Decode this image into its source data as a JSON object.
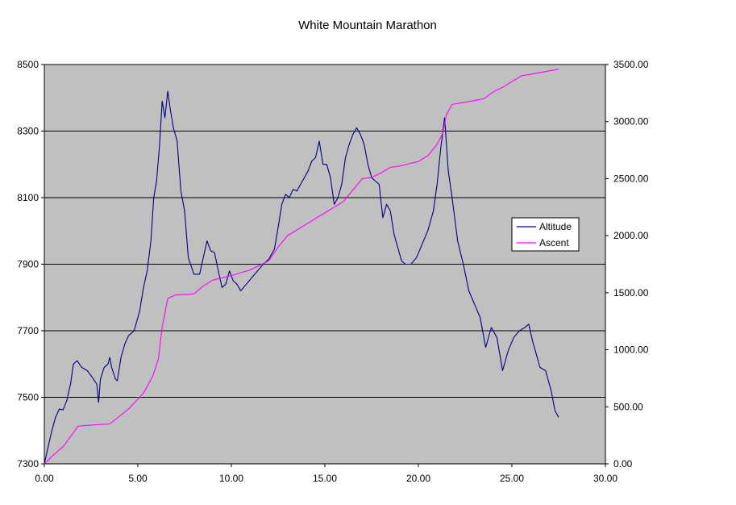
{
  "colors": {
    "plot_background": "#c0c0c0",
    "altitude": "#000080",
    "ascent": "#ff00ff",
    "gridline": "#000000"
  },
  "chart_data": {
    "type": "line",
    "title": "White Mountain Marathon",
    "xlabel": "",
    "ylabel": "",
    "y2label": "",
    "xlim": [
      0,
      30
    ],
    "ylim": [
      7300,
      8500
    ],
    "y2lim": [
      0,
      3500
    ],
    "x_ticks": [
      "0.00",
      "5.00",
      "10.00",
      "15.00",
      "20.00",
      "25.00",
      "30.00"
    ],
    "y_ticks": [
      "7300",
      "7500",
      "7700",
      "7900",
      "8100",
      "8300",
      "8500"
    ],
    "y2_ticks": [
      "0.00",
      "500.00",
      "1000.00",
      "1500.00",
      "2000.00",
      "2500.00",
      "3000.00",
      "3500.00"
    ],
    "grid": "horizontal major lines on left axis",
    "legend_position": "right",
    "series": [
      {
        "name": "Altitude",
        "axis": "left",
        "points": [
          [
            0,
            7300
          ],
          [
            0.2,
            7350
          ],
          [
            0.4,
            7400
          ],
          [
            0.6,
            7440
          ],
          [
            0.8,
            7465
          ],
          [
            1,
            7462
          ],
          [
            1.2,
            7490
          ],
          [
            1.4,
            7540
          ],
          [
            1.55,
            7600
          ],
          [
            1.75,
            7610
          ],
          [
            2,
            7590
          ],
          [
            2.3,
            7580
          ],
          [
            2.5,
            7565
          ],
          [
            2.8,
            7540
          ],
          [
            2.9,
            7485
          ],
          [
            3,
            7555
          ],
          [
            3.2,
            7590
          ],
          [
            3.4,
            7600
          ],
          [
            3.5,
            7620
          ],
          [
            3.6,
            7590
          ],
          [
            3.8,
            7555
          ],
          [
            3.9,
            7550
          ],
          [
            4.1,
            7620
          ],
          [
            4.3,
            7660
          ],
          [
            4.5,
            7685
          ],
          [
            4.8,
            7700
          ],
          [
            5.1,
            7760
          ],
          [
            5.3,
            7830
          ],
          [
            5.5,
            7880
          ],
          [
            5.7,
            7970
          ],
          [
            5.85,
            8100
          ],
          [
            6,
            8150
          ],
          [
            6.15,
            8250
          ],
          [
            6.3,
            8390
          ],
          [
            6.45,
            8340
          ],
          [
            6.6,
            8420
          ],
          [
            6.75,
            8360
          ],
          [
            6.9,
            8310
          ],
          [
            7.1,
            8270
          ],
          [
            7.3,
            8120
          ],
          [
            7.5,
            8060
          ],
          [
            7.7,
            7920
          ],
          [
            8,
            7870
          ],
          [
            8.3,
            7870
          ],
          [
            8.5,
            7920
          ],
          [
            8.7,
            7970
          ],
          [
            8.9,
            7940
          ],
          [
            9.1,
            7935
          ],
          [
            9.3,
            7880
          ],
          [
            9.5,
            7830
          ],
          [
            9.7,
            7840
          ],
          [
            9.9,
            7880
          ],
          [
            10.1,
            7850
          ],
          [
            10.3,
            7840
          ],
          [
            10.5,
            7820
          ],
          [
            10.8,
            7840
          ],
          [
            11.1,
            7860
          ],
          [
            11.4,
            7880
          ],
          [
            11.7,
            7900
          ],
          [
            12,
            7915
          ],
          [
            12.3,
            7945
          ],
          [
            12.5,
            8010
          ],
          [
            12.7,
            8080
          ],
          [
            12.9,
            8110
          ],
          [
            13.1,
            8100
          ],
          [
            13.3,
            8125
          ],
          [
            13.5,
            8120
          ],
          [
            13.7,
            8140
          ],
          [
            13.9,
            8160
          ],
          [
            14.1,
            8180
          ],
          [
            14.3,
            8210
          ],
          [
            14.5,
            8220
          ],
          [
            14.7,
            8270
          ],
          [
            14.9,
            8200
          ],
          [
            15.1,
            8200
          ],
          [
            15.3,
            8160
          ],
          [
            15.5,
            8080
          ],
          [
            15.7,
            8100
          ],
          [
            15.9,
            8140
          ],
          [
            16.1,
            8220
          ],
          [
            16.3,
            8260
          ],
          [
            16.5,
            8290
          ],
          [
            16.7,
            8310
          ],
          [
            16.9,
            8290
          ],
          [
            17.1,
            8260
          ],
          [
            17.3,
            8200
          ],
          [
            17.5,
            8160
          ],
          [
            17.7,
            8150
          ],
          [
            17.9,
            8140
          ],
          [
            18.1,
            8040
          ],
          [
            18.3,
            8080
          ],
          [
            18.5,
            8060
          ],
          [
            18.7,
            7990
          ],
          [
            18.9,
            7950
          ],
          [
            19.1,
            7910
          ],
          [
            19.3,
            7900
          ],
          [
            19.6,
            7900
          ],
          [
            19.9,
            7920
          ],
          [
            20.2,
            7960
          ],
          [
            20.5,
            8000
          ],
          [
            20.8,
            8060
          ],
          [
            21,
            8140
          ],
          [
            21.2,
            8250
          ],
          [
            21.4,
            8340
          ],
          [
            21.6,
            8180
          ],
          [
            21.8,
            8100
          ],
          [
            22.1,
            7970
          ],
          [
            22.4,
            7900
          ],
          [
            22.7,
            7820
          ],
          [
            23,
            7780
          ],
          [
            23.3,
            7740
          ],
          [
            23.6,
            7650
          ],
          [
            23.9,
            7710
          ],
          [
            24.2,
            7680
          ],
          [
            24.5,
            7580
          ],
          [
            24.8,
            7640
          ],
          [
            25.1,
            7680
          ],
          [
            25.4,
            7700
          ],
          [
            25.7,
            7710
          ],
          [
            25.9,
            7720
          ],
          [
            26.1,
            7670
          ],
          [
            26.3,
            7630
          ],
          [
            26.5,
            7590
          ],
          [
            26.8,
            7580
          ],
          [
            27.1,
            7520
          ],
          [
            27.3,
            7460
          ],
          [
            27.5,
            7440
          ]
        ]
      },
      {
        "name": "Ascent",
        "axis": "right",
        "points": [
          [
            0,
            0
          ],
          [
            0.5,
            80
          ],
          [
            1,
            150
          ],
          [
            1.5,
            260
          ],
          [
            1.8,
            330
          ],
          [
            2.5,
            340
          ],
          [
            3.5,
            350
          ],
          [
            4.5,
            480
          ],
          [
            5.3,
            620
          ],
          [
            5.8,
            770
          ],
          [
            6.1,
            920
          ],
          [
            6.3,
            1200
          ],
          [
            6.6,
            1450
          ],
          [
            7,
            1480
          ],
          [
            8,
            1490
          ],
          [
            8.5,
            1560
          ],
          [
            9,
            1610
          ],
          [
            10,
            1650
          ],
          [
            11,
            1700
          ],
          [
            12,
            1780
          ],
          [
            12.5,
            1900
          ],
          [
            13,
            2000
          ],
          [
            13.5,
            2050
          ],
          [
            14,
            2100
          ],
          [
            14.5,
            2150
          ],
          [
            15,
            2200
          ],
          [
            15.5,
            2250
          ],
          [
            16,
            2300
          ],
          [
            16.5,
            2400
          ],
          [
            17,
            2500
          ],
          [
            17.5,
            2510
          ],
          [
            18,
            2550
          ],
          [
            18.5,
            2600
          ],
          [
            19,
            2610
          ],
          [
            19.5,
            2630
          ],
          [
            20,
            2650
          ],
          [
            20.5,
            2700
          ],
          [
            21,
            2800
          ],
          [
            21.3,
            2900
          ],
          [
            21.5,
            3060
          ],
          [
            21.8,
            3150
          ],
          [
            22.5,
            3170
          ],
          [
            23.5,
            3200
          ],
          [
            24,
            3260
          ],
          [
            24.5,
            3300
          ],
          [
            25,
            3350
          ],
          [
            25.5,
            3400
          ],
          [
            26.5,
            3430
          ],
          [
            27.5,
            3460
          ]
        ]
      }
    ]
  }
}
